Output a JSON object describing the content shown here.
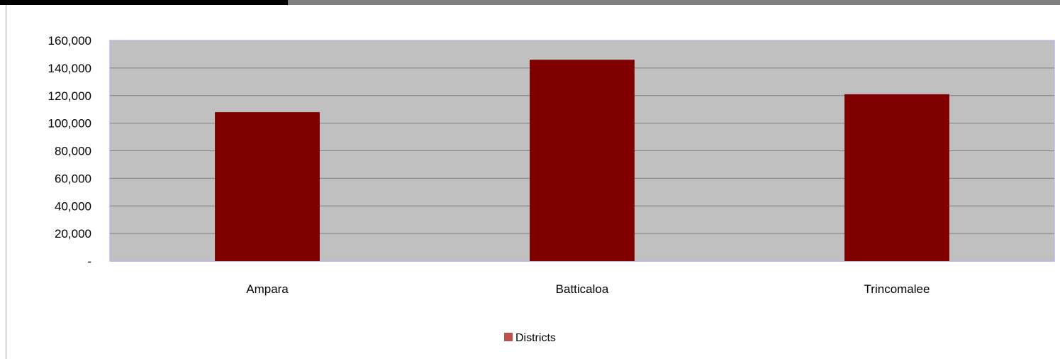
{
  "chart_data": {
    "type": "bar",
    "categories": [
      "Ampara",
      "Batticaloa",
      "Trincomalee"
    ],
    "series": [
      {
        "name": "Districts",
        "values": [
          108000,
          146000,
          121000
        ],
        "color": "#800000"
      }
    ],
    "ylim": [
      0,
      160000
    ],
    "yticks": [
      0,
      20000,
      40000,
      60000,
      80000,
      100000,
      120000,
      140000,
      160000
    ],
    "ytick_labels": [
      "-",
      "20,000",
      "40,000",
      "60,000",
      "80,000",
      "100,000",
      "120,000",
      "140,000",
      "160,000"
    ],
    "grid": true,
    "legend_position": "bottom",
    "legend_swatch_color": "#c0504d",
    "plot_background": "#c0c0c0",
    "plot_border_color": "#b8b8e8"
  }
}
